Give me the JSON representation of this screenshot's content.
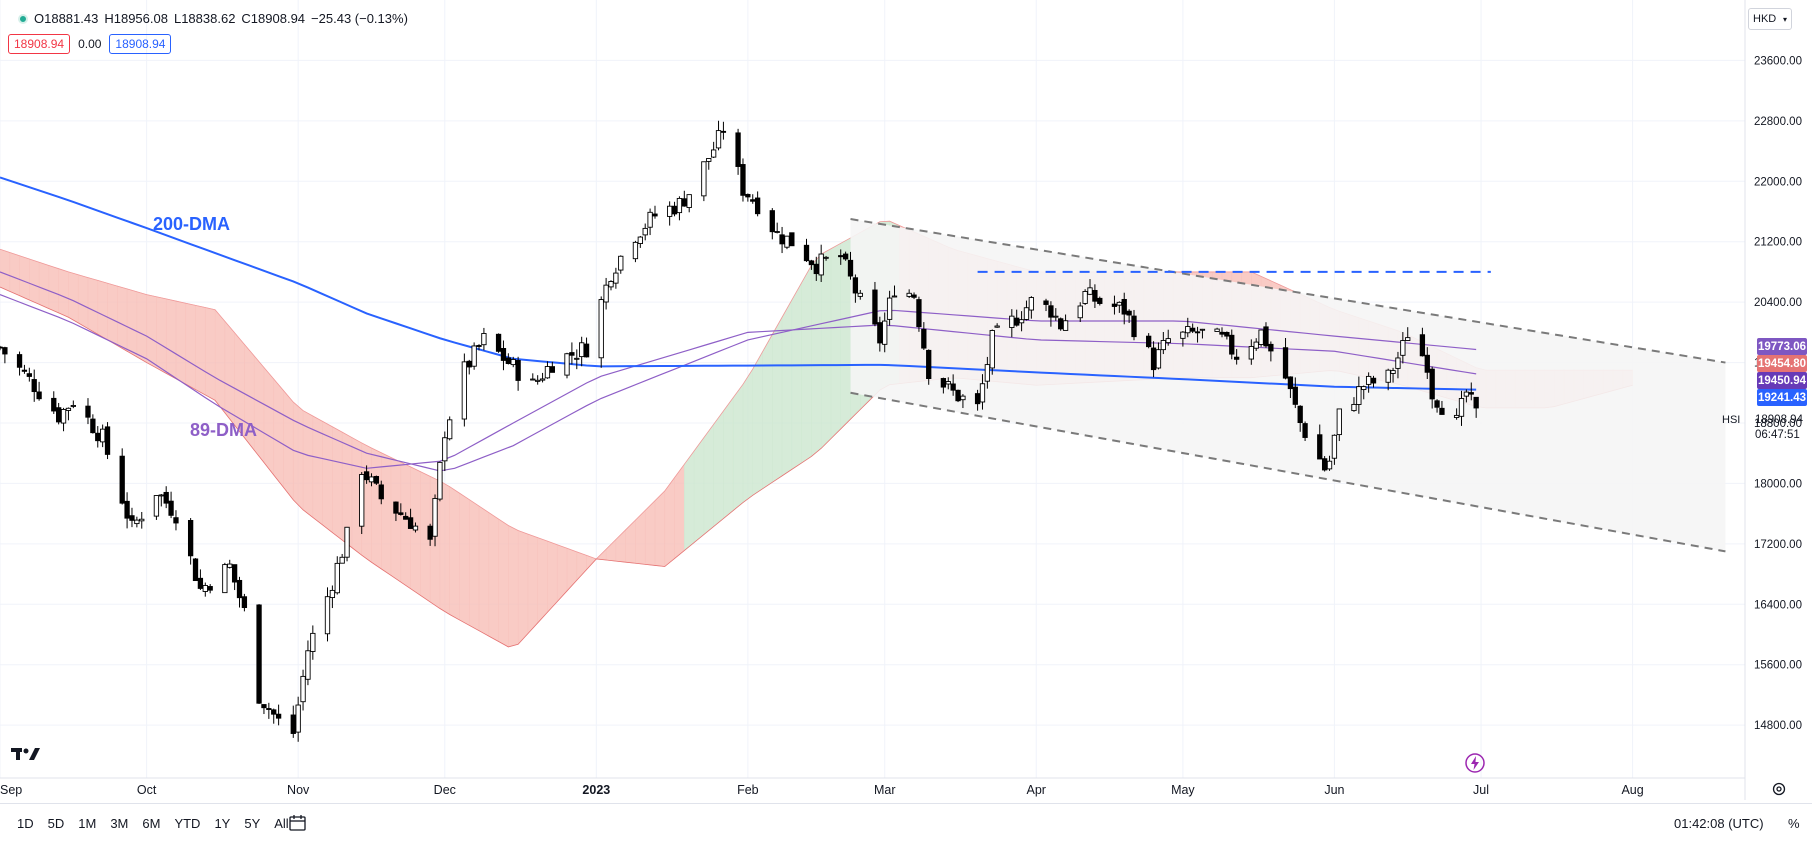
{
  "header": {
    "open": "O18881.43",
    "high": "H18956.08",
    "low": "L18838.62",
    "close": "C18908.94",
    "change": "−25.43 (−0.13%)",
    "value_box_1": "18908.94",
    "value_plain": "0.00",
    "value_box_2": "18908.94"
  },
  "currency": "HKD",
  "symbol": "HSI",
  "last_price": "18908.94",
  "countdown": "06:47:51",
  "price_tags": [
    {
      "label": "19773.06",
      "color": "#7e57c2"
    },
    {
      "label": "19454.80",
      "color": "#e57373"
    },
    {
      "label": "19450.94",
      "color": "#673ab7"
    },
    {
      "label": "19241.43",
      "color": "#2962ff"
    }
  ],
  "bottom_bar": {
    "ranges": [
      "1D",
      "5D",
      "1M",
      "3M",
      "6M",
      "YTD",
      "1Y",
      "5Y",
      "All"
    ],
    "time": "01:42:08 (UTC)",
    "percent": "%"
  },
  "colors": {
    "up": "#ffffff",
    "down": "#000000",
    "ma200": "#2962ff",
    "ma89": "#8e5fc7",
    "cloud_bear": "#f8c2bc",
    "cloud_bull": "#cfe8d2",
    "channel": "#7a7a7a",
    "resistance": "#2962ff"
  },
  "chart_data": {
    "type": "candlestick",
    "y_ticks": [
      "23600.00",
      "22800.00",
      "22000.00",
      "21200.00",
      "20400.00",
      "19600.00",
      "18800.00",
      "18000.00",
      "17200.00",
      "16400.00",
      "15600.00",
      "14800.00"
    ],
    "y_tick_values": [
      23600,
      22800,
      22000,
      21200,
      20400,
      19600,
      18800,
      18000,
      17200,
      16400,
      15600,
      14800
    ],
    "ylim": [
      14100,
      24400
    ],
    "x_ticks": [
      {
        "label": "Sep",
        "date": "2022-09-01"
      },
      {
        "label": "Oct",
        "date": "2022-10-01"
      },
      {
        "label": "Nov",
        "date": "2022-11-01"
      },
      {
        "label": "Dec",
        "date": "2022-12-01"
      },
      {
        "label": "2023",
        "date": "2023-01-01"
      },
      {
        "label": "Feb",
        "date": "2023-02-01"
      },
      {
        "label": "Mar",
        "date": "2023-03-01"
      },
      {
        "label": "Apr",
        "date": "2023-04-01"
      },
      {
        "label": "May",
        "date": "2023-05-01"
      },
      {
        "label": "Jun",
        "date": "2023-06-01"
      },
      {
        "label": "Jul",
        "date": "2023-07-01"
      },
      {
        "label": "Aug",
        "date": "2023-08-01"
      }
    ],
    "xlim": [
      "2022-09-01",
      "2023-08-24"
    ],
    "annotations": [
      {
        "text": "200-DMA",
        "color": "#2962ff"
      },
      {
        "text": "89-DMA",
        "color": "#8e5fc7"
      }
    ],
    "price_path": [
      [
        "2022-09-01",
        19800
      ],
      [
        "2022-09-08",
        19300
      ],
      [
        "2022-09-13",
        18900
      ],
      [
        "2022-09-16",
        19100
      ],
      [
        "2022-09-22",
        18600
      ],
      [
        "2022-09-28",
        17400
      ],
      [
        "2022-10-03",
        17900
      ],
      [
        "2022-10-07",
        17600
      ],
      [
        "2022-10-12",
        16600
      ],
      [
        "2022-10-18",
        16900
      ],
      [
        "2022-10-21",
        16300
      ],
      [
        "2022-10-24",
        15200
      ],
      [
        "2022-10-28",
        14850
      ],
      [
        "2022-10-31",
        14700
      ],
      [
        "2022-11-03",
        15800
      ],
      [
        "2022-11-07",
        16500
      ],
      [
        "2022-11-11",
        17300
      ],
      [
        "2022-11-14",
        18200
      ],
      [
        "2022-11-18",
        17800
      ],
      [
        "2022-11-24",
        17500
      ],
      [
        "2022-11-28",
        17200
      ],
      [
        "2022-12-01",
        18700
      ],
      [
        "2022-12-05",
        19500
      ],
      [
        "2022-12-09",
        19900
      ],
      [
        "2022-12-14",
        19600
      ],
      [
        "2022-12-19",
        19300
      ],
      [
        "2022-12-23",
        19600
      ],
      [
        "2022-12-30",
        19800
      ],
      [
        "2023-01-04",
        20800
      ],
      [
        "2023-01-09",
        21300
      ],
      [
        "2023-01-13",
        21550
      ],
      [
        "2023-01-18",
        21700
      ],
      [
        "2023-01-20",
        21850
      ],
      [
        "2023-01-26",
        22550
      ],
      [
        "2023-01-27",
        22700
      ],
      [
        "2023-01-31",
        21900
      ],
      [
        "2023-02-03",
        21700
      ],
      [
        "2023-02-07",
        21300
      ],
      [
        "2023-02-10",
        21200
      ],
      [
        "2023-02-15",
        20900
      ],
      [
        "2023-02-20",
        21000
      ],
      [
        "2023-02-24",
        20400
      ],
      [
        "2023-02-28",
        19900
      ],
      [
        "2023-03-03",
        20600
      ],
      [
        "2023-03-07",
        20500
      ],
      [
        "2023-03-10",
        19500
      ],
      [
        "2023-03-15",
        19200
      ],
      [
        "2023-03-20",
        19000
      ],
      [
        "2023-03-23",
        19900
      ],
      [
        "2023-03-28",
        20200
      ],
      [
        "2023-03-31",
        20400
      ],
      [
        "2023-04-04",
        20300
      ],
      [
        "2023-04-06",
        20100
      ],
      [
        "2023-04-11",
        20500
      ],
      [
        "2023-04-14",
        20400
      ],
      [
        "2023-04-19",
        20300
      ],
      [
        "2023-04-25",
        19600
      ],
      [
        "2023-04-28",
        19900
      ],
      [
        "2023-05-04",
        20000
      ],
      [
        "2023-05-09",
        19900
      ],
      [
        "2023-05-12",
        19700
      ],
      [
        "2023-05-17",
        20000
      ],
      [
        "2023-05-22",
        19400
      ],
      [
        "2023-05-25",
        18800
      ],
      [
        "2023-05-30",
        18200
      ],
      [
        "2023-05-31",
        18300
      ],
      [
        "2023-06-02",
        18900
      ],
      [
        "2023-06-07",
        19300
      ],
      [
        "2023-06-12",
        19400
      ],
      [
        "2023-06-15",
        19800
      ],
      [
        "2023-06-16",
        20000
      ],
      [
        "2023-06-20",
        19600
      ],
      [
        "2023-06-21",
        19200
      ],
      [
        "2023-06-26",
        18800
      ],
      [
        "2023-06-28",
        19200
      ],
      [
        "2023-06-30",
        18908
      ]
    ],
    "ma200": [
      [
        "2022-09-01",
        22050
      ],
      [
        "2022-09-15",
        21750
      ],
      [
        "2022-10-01",
        21380
      ],
      [
        "2022-10-15",
        21050
      ],
      [
        "2022-11-01",
        20650
      ],
      [
        "2022-11-15",
        20250
      ],
      [
        "2022-12-01",
        19900
      ],
      [
        "2022-12-15",
        19650
      ],
      [
        "2023-01-01",
        19550
      ],
      [
        "2023-02-01",
        19560
      ],
      [
        "2023-03-01",
        19570
      ],
      [
        "2023-04-01",
        19470
      ],
      [
        "2023-05-01",
        19380
      ],
      [
        "2023-06-01",
        19280
      ],
      [
        "2023-06-30",
        19241
      ]
    ],
    "ma89": [
      [
        "2022-09-01",
        20500
      ],
      [
        "2022-09-15",
        20150
      ],
      [
        "2022-10-01",
        19650
      ],
      [
        "2022-10-15",
        19050
      ],
      [
        "2022-11-01",
        18400
      ],
      [
        "2022-11-15",
        18200
      ],
      [
        "2022-12-01",
        18300
      ],
      [
        "2022-12-15",
        18800
      ],
      [
        "2023-01-01",
        19400
      ],
      [
        "2023-02-01",
        20000
      ],
      [
        "2023-03-01",
        20100
      ],
      [
        "2023-04-01",
        19900
      ],
      [
        "2023-05-01",
        19850
      ],
      [
        "2023-06-01",
        19750
      ],
      [
        "2023-06-30",
        19450
      ]
    ],
    "ma_extra": [
      [
        "2022-09-01",
        20800
      ],
      [
        "2022-09-15",
        20450
      ],
      [
        "2022-10-01",
        19950
      ],
      [
        "2022-10-15",
        19400
      ],
      [
        "2022-11-01",
        18800
      ],
      [
        "2022-11-15",
        18400
      ],
      [
        "2022-12-01",
        18150
      ],
      [
        "2022-12-15",
        18500
      ],
      [
        "2023-01-01",
        19100
      ],
      [
        "2023-02-01",
        19900
      ],
      [
        "2023-03-01",
        20300
      ],
      [
        "2023-04-01",
        20150
      ],
      [
        "2023-05-01",
        20150
      ],
      [
        "2023-06-01",
        19950
      ],
      [
        "2023-06-30",
        19773
      ]
    ],
    "cloud_upper": [
      [
        "2022-09-01",
        21100
      ],
      [
        "2022-09-15",
        20800
      ],
      [
        "2022-10-01",
        20500
      ],
      [
        "2022-10-15",
        20300
      ],
      [
        "2022-11-01",
        19000
      ],
      [
        "2022-11-15",
        18500
      ],
      [
        "2022-12-01",
        18000
      ],
      [
        "2022-12-15",
        17400
      ],
      [
        "2023-01-01",
        17000
      ],
      [
        "2023-01-15",
        17900
      ],
      [
        "2023-02-01",
        19400
      ],
      [
        "2023-02-15",
        21000
      ],
      [
        "2023-03-01",
        21500
      ],
      [
        "2023-03-15",
        21100
      ],
      [
        "2023-04-01",
        20800
      ],
      [
        "2023-05-01",
        20800
      ],
      [
        "2023-05-15",
        20800
      ],
      [
        "2023-06-01",
        20300
      ],
      [
        "2023-06-15",
        20000
      ],
      [
        "2023-07-01",
        19500
      ],
      [
        "2023-07-15",
        19500
      ],
      [
        "2023-08-01",
        19500
      ]
    ],
    "cloud_lower": [
      [
        "2022-09-01",
        20600
      ],
      [
        "2022-09-15",
        20200
      ],
      [
        "2022-10-01",
        19600
      ],
      [
        "2022-10-15",
        19100
      ],
      [
        "2022-11-01",
        17700
      ],
      [
        "2022-11-15",
        17000
      ],
      [
        "2022-12-01",
        16300
      ],
      [
        "2022-12-15",
        15800
      ],
      [
        "2023-01-01",
        17000
      ],
      [
        "2023-01-15",
        16900
      ],
      [
        "2023-02-01",
        17800
      ],
      [
        "2023-02-15",
        18400
      ],
      [
        "2023-03-01",
        19300
      ],
      [
        "2023-03-15",
        19400
      ],
      [
        "2023-04-01",
        19300
      ],
      [
        "2023-05-01",
        19400
      ],
      [
        "2023-05-15",
        19400
      ],
      [
        "2023-06-01",
        19500
      ],
      [
        "2023-06-15",
        19300
      ],
      [
        "2023-07-01",
        19000
      ],
      [
        "2023-07-15",
        19000
      ],
      [
        "2023-08-01",
        19300
      ]
    ],
    "channel_upper": [
      [
        "2023-02-22",
        21500
      ],
      [
        "2023-08-20",
        19600
      ]
    ],
    "channel_lower": [
      [
        "2023-02-22",
        19200
      ],
      [
        "2023-08-20",
        17100
      ]
    ],
    "resistance_level": {
      "value": 20800,
      "from": "2023-03-20",
      "to": "2023-07-03"
    }
  }
}
